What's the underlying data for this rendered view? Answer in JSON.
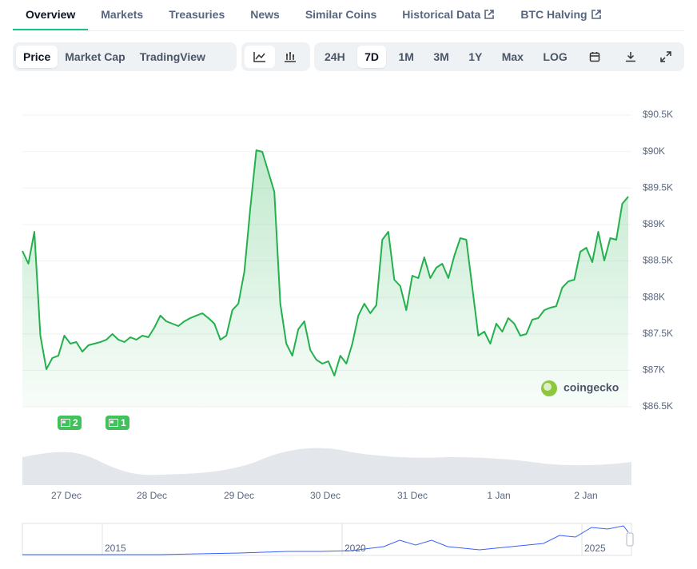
{
  "tabs": [
    "Overview",
    "Markets",
    "Treasuries",
    "News",
    "Similar Coins",
    "Historical Data",
    "BTC Halving"
  ],
  "view_buttons": [
    "Price",
    "Market Cap",
    "TradingView"
  ],
  "range_buttons": [
    "24H",
    "7D",
    "1M",
    "3M",
    "1Y",
    "Max",
    "LOG"
  ],
  "chart_data": {
    "type": "line",
    "color": "#22b14c",
    "values": [
      88637,
      88462,
      88900,
      87475,
      87015,
      87168,
      87200,
      87475,
      87366,
      87388,
      87256,
      87344,
      87366,
      87388,
      87420,
      87497,
      87420,
      87388,
      87453,
      87420,
      87475,
      87453,
      87585,
      87750,
      87672,
      87640,
      87607,
      87672,
      87716,
      87750,
      87782,
      87716,
      87640,
      87420,
      87475,
      87825,
      87914,
      88352,
      89229,
      90018,
      89996,
      89722,
      89448,
      87914,
      87366,
      87200,
      87563,
      87672,
      87278,
      87146,
      87092,
      87124,
      86927,
      87200,
      87092,
      87366,
      87750,
      87914,
      87782,
      87893,
      88790,
      88900,
      88242,
      88155,
      87825,
      88297,
      88264,
      88549,
      88264,
      88407,
      88462,
      88264,
      88571,
      88812,
      88790,
      88133,
      87475,
      87530,
      87366,
      87640,
      87530,
      87716,
      87640,
      87475,
      87497,
      87694,
      87716,
      87825,
      87858,
      87880,
      88133,
      88220,
      88242,
      88626,
      88681,
      88484,
      88900,
      88505,
      88812,
      88790,
      89284,
      89382
    ],
    "ylim": [
      86500,
      90500
    ],
    "yticks": [
      {
        "value": 86500,
        "label": "$86.5K"
      },
      {
        "value": 87000,
        "label": "$87K"
      },
      {
        "value": 87500,
        "label": "$87.5K"
      },
      {
        "value": 88000,
        "label": "$88K"
      },
      {
        "value": 88500,
        "label": "$88.5K"
      },
      {
        "value": 89000,
        "label": "$89K"
      },
      {
        "value": 89500,
        "label": "$89.5K"
      },
      {
        "value": 90000,
        "label": "$90K"
      },
      {
        "value": 90500,
        "label": "$90.5K"
      }
    ],
    "x_labels": [
      "27 Dec",
      "28 Dec",
      "29 Dec",
      "30 Dec",
      "31 Dec",
      "1 Jan",
      "2 Jan"
    ],
    "grid": true,
    "watermark": "coingecko",
    "events": [
      "2",
      "1"
    ]
  },
  "overview": {
    "labels": [
      "2015",
      "2020",
      "2025"
    ]
  }
}
